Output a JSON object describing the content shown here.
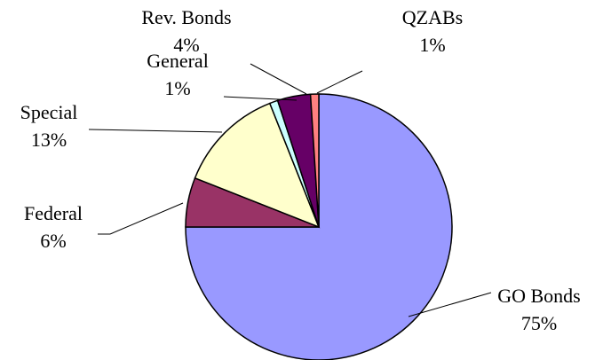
{
  "chart_data": {
    "type": "pie",
    "categories": [
      "GO Bonds",
      "Federal",
      "Special",
      "General",
      "Rev. Bonds",
      "QZABs"
    ],
    "values": [
      75,
      6,
      13,
      1,
      4,
      1
    ],
    "value_labels": [
      "75%",
      "6%",
      "13%",
      "1%",
      "4%",
      "1%"
    ],
    "colors": [
      "#9999ff",
      "#993366",
      "#ffffcc",
      "#ccffff",
      "#660066",
      "#ff8080"
    ]
  }
}
